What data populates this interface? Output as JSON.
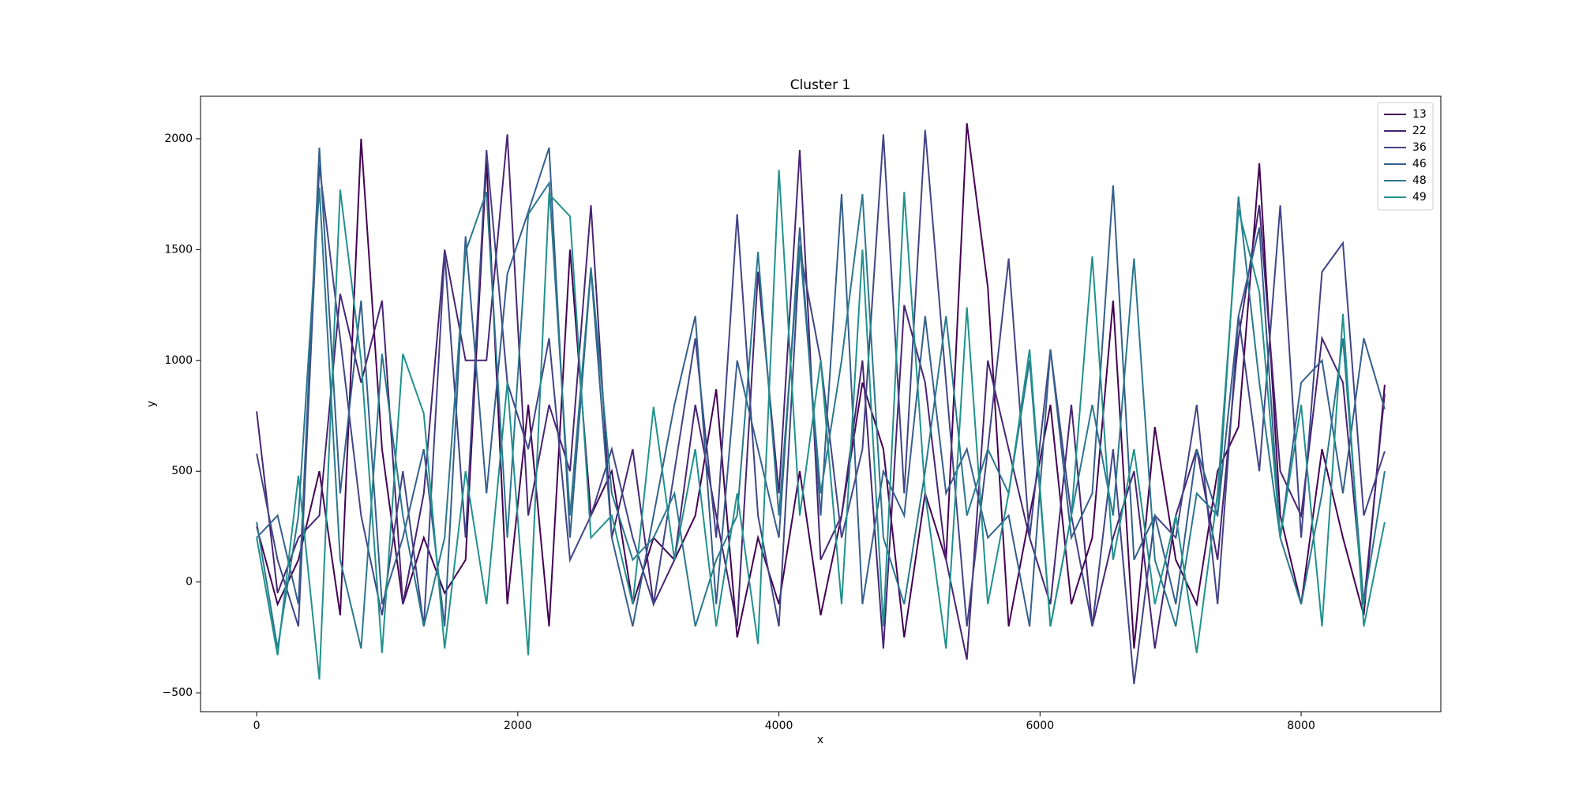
{
  "chart_data": {
    "type": "line",
    "title": "Cluster 1",
    "x_label": "x",
    "y_label": "y",
    "x": [
      0,
      160,
      320,
      480,
      640,
      800,
      960,
      1120,
      1280,
      1440,
      1600,
      1760,
      1920,
      2080,
      2240,
      2400,
      2560,
      2720,
      2880,
      3040,
      3200,
      3360,
      3520,
      3680,
      3840,
      4000,
      4160,
      4320,
      4480,
      4640,
      4800,
      4960,
      5120,
      5280,
      5440,
      5600,
      5760,
      5920,
      6080,
      6240,
      6400,
      6560,
      6720,
      6880,
      7040,
      7200,
      7360,
      7520,
      7680,
      7840,
      8000,
      8160,
      8320,
      8480,
      8640
    ],
    "series": [
      {
        "name": "13",
        "color": "#440154",
        "values": [
          250,
          -100,
          100,
          500,
          -150,
          2000,
          600,
          -100,
          200,
          -50,
          100,
          1900,
          -100,
          800,
          -200,
          1500,
          300,
          500,
          -100,
          200,
          100,
          300,
          870,
          -250,
          200,
          -100,
          500,
          -150,
          300,
          900,
          600,
          -250,
          400,
          100,
          2070,
          1330,
          -200,
          300,
          800,
          -100,
          200,
          1270,
          -300,
          700,
          100,
          -100,
          500,
          700,
          1890,
          300,
          -100,
          600,
          200,
          -150,
          890
        ]
      },
      {
        "name": "22",
        "color": "#482475",
        "values": [
          770,
          -50,
          200,
          300,
          1300,
          900,
          1270,
          -100,
          400,
          1500,
          1000,
          1000,
          2020,
          300,
          800,
          500,
          1700,
          200,
          600,
          -100,
          100,
          800,
          300,
          -200,
          1400,
          400,
          1950,
          100,
          300,
          1000,
          -300,
          1250,
          900,
          100,
          -350,
          1000,
          600,
          200,
          -100,
          800,
          -200,
          200,
          500,
          -300,
          300,
          600,
          100,
          1100,
          1700,
          500,
          300,
          1100,
          900,
          -100,
          850
        ]
      },
      {
        "name": "36",
        "color": "#414487",
        "values": [
          580,
          100,
          -200,
          1880,
          1100,
          300,
          -150,
          500,
          -200,
          1480,
          200,
          1950,
          900,
          600,
          1100,
          100,
          300,
          600,
          200,
          -100,
          500,
          1100,
          200,
          1660,
          300,
          -200,
          1500,
          1000,
          200,
          600,
          2020,
          400,
          2040,
          900,
          -200,
          600,
          1460,
          200,
          1050,
          300,
          -200,
          600,
          -460,
          300,
          200,
          800,
          -100,
          1200,
          500,
          1700,
          200,
          1400,
          1530,
          300,
          590
        ]
      },
      {
        "name": "46",
        "color": "#355f8d",
        "values": [
          200,
          300,
          -100,
          1960,
          400,
          1270,
          -100,
          200,
          600,
          -200,
          1560,
          400,
          1390,
          1670,
          1960,
          200,
          1410,
          200,
          -200,
          300,
          800,
          1200,
          -100,
          1000,
          600,
          200,
          1600,
          300,
          1750,
          -100,
          500,
          300,
          1200,
          400,
          600,
          200,
          300,
          -200,
          1050,
          200,
          400,
          1790,
          100,
          300,
          -100,
          600,
          300,
          1200,
          1600,
          200,
          900,
          1000,
          400,
          1100,
          780
        ]
      },
      {
        "name": "48",
        "color": "#2a788e",
        "values": [
          270,
          -300,
          300,
          1780,
          100,
          -300,
          1030,
          300,
          -200,
          200,
          1490,
          1760,
          200,
          1660,
          1800,
          300,
          1420,
          400,
          100,
          200,
          400,
          -200,
          100,
          300,
          1490,
          300,
          1520,
          400,
          1000,
          1750,
          200,
          -100,
          500,
          1200,
          300,
          600,
          400,
          1000,
          -200,
          300,
          800,
          300,
          1460,
          100,
          -200,
          400,
          300,
          1740,
          900,
          200,
          -100,
          400,
          1100,
          -100,
          500
        ]
      },
      {
        "name": "49",
        "color": "#21918c",
        "values": [
          200,
          -330,
          480,
          -440,
          1770,
          1000,
          -320,
          1030,
          760,
          -300,
          500,
          -100,
          900,
          -330,
          1750,
          1650,
          200,
          300,
          -100,
          790,
          100,
          600,
          -200,
          400,
          -280,
          1860,
          300,
          1000,
          -100,
          1500,
          -200,
          1760,
          400,
          -300,
          1240,
          -100,
          400,
          1050,
          -200,
          300,
          1470,
          100,
          600,
          -100,
          300,
          -320,
          400,
          1680,
          1310,
          200,
          800,
          -200,
          1210,
          -200,
          270
        ]
      }
    ],
    "xlim": [
      -430,
      9070
    ],
    "ylim": [
      -585,
      2192
    ],
    "xticks": [
      0,
      2000,
      4000,
      6000,
      8000
    ],
    "yticks": [
      {
        "value": -500,
        "label": "−500"
      },
      0,
      500,
      1000,
      1500,
      2000
    ],
    "legend": "upper right"
  }
}
